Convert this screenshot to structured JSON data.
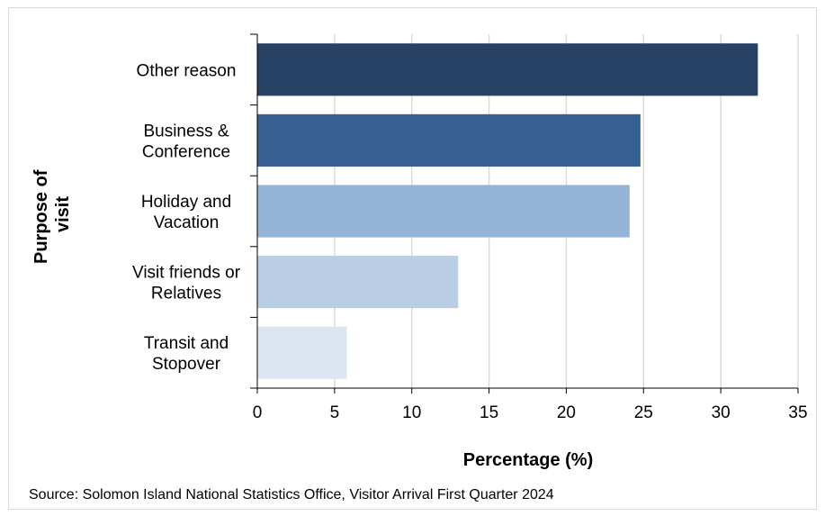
{
  "chart_data": {
    "type": "bar",
    "orientation": "horizontal",
    "categories": [
      [
        "Other reason"
      ],
      [
        "Business &",
        "Conference"
      ],
      [
        "Holiday and",
        "Vacation"
      ],
      [
        "Visit friends or",
        "Relatives"
      ],
      [
        "Transit and",
        "Stopover"
      ]
    ],
    "values": [
      32.4,
      24.8,
      24.1,
      13.0,
      5.8
    ],
    "colors": [
      "#264163",
      "#376092",
      "#95b3d7",
      "#b9cde5",
      "#dce6f2"
    ],
    "xlabel": "Percentage (%)",
    "ylabel": [
      "Purpose of",
      "visit"
    ],
    "xlim": [
      0,
      35
    ],
    "xticks": [
      "0",
      "5",
      "10",
      "15",
      "20",
      "25",
      "30",
      "35"
    ],
    "grid": true,
    "legend": "none"
  },
  "source": "Source: Solomon Island National Statistics Office, Visitor Arrival  First Quarter 2024"
}
